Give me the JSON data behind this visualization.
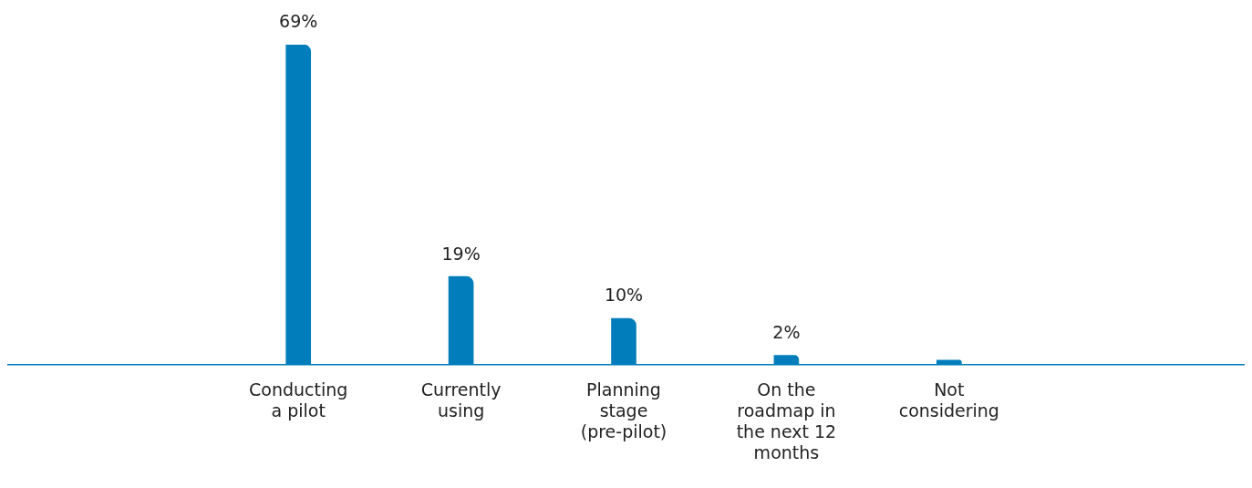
{
  "chart_data": {
    "type": "bar",
    "categories": [
      "Conducting a pilot",
      "Currently using",
      "Planning stage (pre-pilot)",
      "On the roadmap in the next 12 months",
      "Not considering"
    ],
    "values": [
      69,
      19,
      10,
      2,
      1
    ],
    "value_labels": [
      "69%",
      "19%",
      "10%",
      "2%",
      null
    ],
    "color": "#007dba",
    "grid": false,
    "legend": false
  }
}
